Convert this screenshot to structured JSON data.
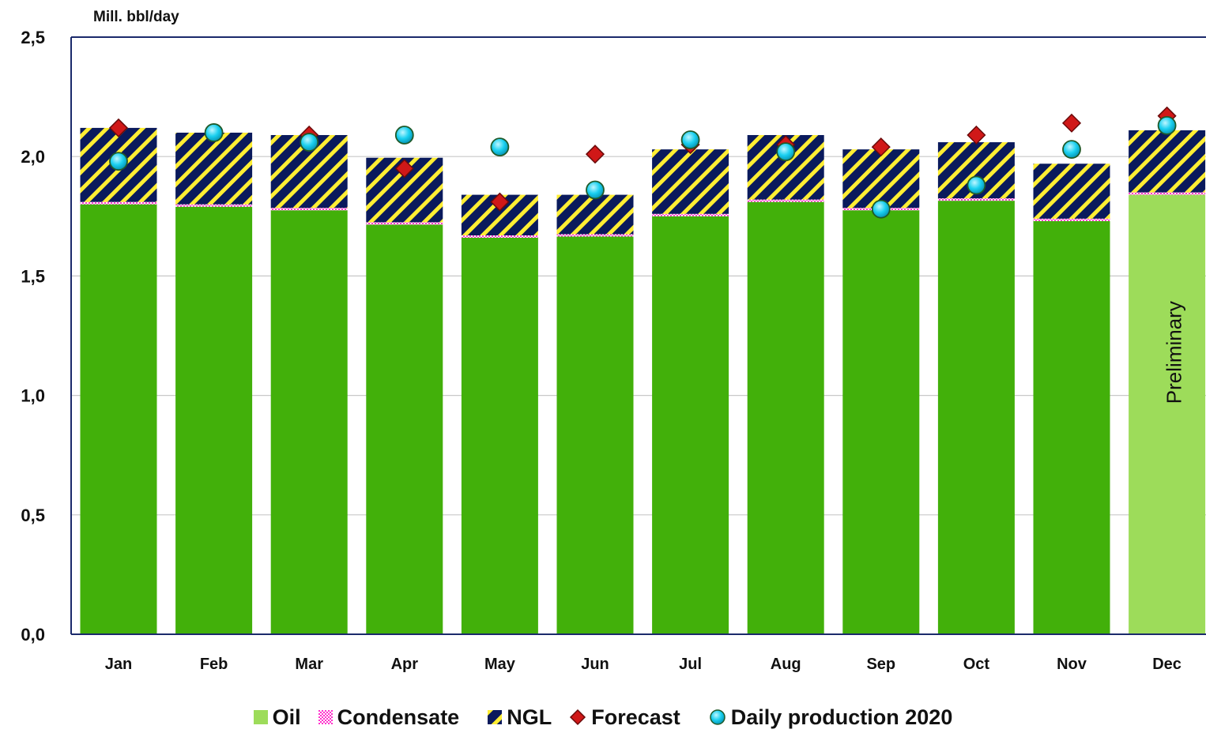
{
  "chart_data": {
    "type": "bar",
    "stacked": true,
    "ylabel": "Mill. bbl/day",
    "ylim": [
      0,
      2.5
    ],
    "yticks": [
      "0,0",
      "0,5",
      "1,0",
      "1,5",
      "2,0",
      "2,5"
    ],
    "ytick_values": [
      0,
      0.5,
      1.0,
      1.5,
      2.0,
      2.5
    ],
    "grid": true,
    "legend_position": "bottom",
    "categories": [
      "Jan",
      "Feb",
      "Mar",
      "Apr",
      "May",
      "Jun",
      "Jul",
      "Aug",
      "Sep",
      "Oct",
      "Nov",
      "Dec"
    ],
    "series": [
      {
        "name": "Oil",
        "kind": "bar",
        "color": "#42b00a",
        "preliminary_color": "#9ddc5a",
        "values": [
          1.8,
          1.79,
          1.775,
          1.715,
          1.66,
          1.665,
          1.75,
          1.81,
          1.775,
          1.815,
          1.73,
          1.84
        ]
      },
      {
        "name": "Condensate",
        "kind": "bar",
        "color": "#ff33cc",
        "values": [
          0.01,
          0.01,
          0.01,
          0.01,
          0.01,
          0.01,
          0.01,
          0.01,
          0.01,
          0.01,
          0.01,
          0.01
        ]
      },
      {
        "name": "NGL",
        "kind": "bar",
        "color": "#0a1a5c",
        "stripe_color": "#ffee33",
        "values": [
          0.31,
          0.3,
          0.305,
          0.27,
          0.17,
          0.165,
          0.27,
          0.27,
          0.245,
          0.235,
          0.23,
          0.26
        ]
      },
      {
        "name": "Forecast",
        "kind": "marker",
        "marker": "diamond",
        "color": "#d01818",
        "values": [
          2.12,
          2.1,
          2.09,
          1.95,
          1.81,
          2.01,
          2.05,
          2.05,
          2.04,
          2.09,
          2.14,
          2.17
        ]
      },
      {
        "name": "Daily production 2020",
        "kind": "marker",
        "marker": "circle",
        "color": "#1ad0f0",
        "values": [
          1.98,
          2.1,
          2.06,
          2.09,
          2.04,
          1.86,
          2.07,
          2.02,
          1.78,
          1.88,
          2.03,
          2.13
        ]
      }
    ],
    "annotations": [
      {
        "category": "Dec",
        "text": "Preliminary"
      }
    ]
  }
}
